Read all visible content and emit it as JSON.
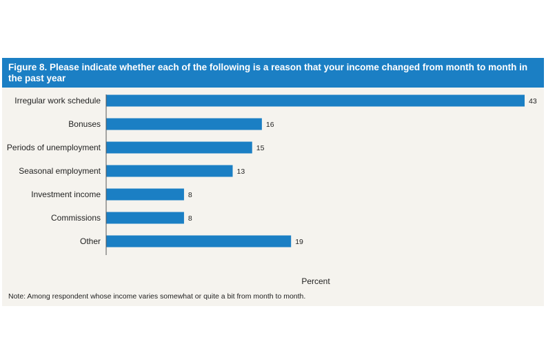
{
  "figure": {
    "title": "Figure 8. Please indicate whether each of the following is a reason that your income changed from month to month in the past year",
    "note": "Note: Among respondent whose income varies somewhat or quite a bit from month to month.",
    "bar_color": "#1b7fc4",
    "header_color": "#1b7fc4",
    "background_color": "#f5f3ee"
  },
  "chart_data": {
    "type": "bar",
    "orientation": "horizontal",
    "title": "Figure 8. Please indicate whether each of the following is a reason that your income changed from month to month in the past year",
    "xlabel": "Percent",
    "ylabel": "",
    "xlim": [
      0,
      43
    ],
    "grid": false,
    "categories": [
      "Irregular work schedule",
      "Bonuses",
      "Periods of unemployment",
      "Seasonal employment",
      "Investment income",
      "Commissions",
      "Other"
    ],
    "values": [
      43,
      16,
      15,
      13,
      8,
      8,
      19
    ]
  }
}
